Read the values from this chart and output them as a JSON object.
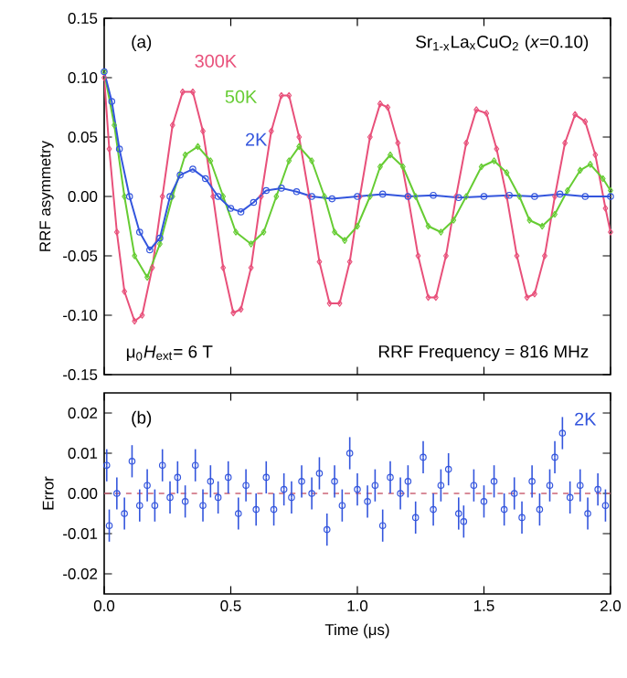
{
  "chart_data": [
    {
      "type": "line",
      "xlim": [
        0,
        2
      ],
      "ylim": [
        -0.15,
        0.15
      ],
      "xticks": [
        0,
        0.5,
        1,
        1.5,
        2
      ],
      "yticks": [
        {
          "value": -0.15,
          "label": "-0.15"
        },
        {
          "value": -0.1,
          "label": "-0.10"
        },
        {
          "value": -0.05,
          "label": "-0.05"
        },
        {
          "value": 0,
          "label": "0.00"
        },
        {
          "value": 0.05,
          "label": "0.05"
        },
        {
          "value": 0.1,
          "label": "0.10"
        },
        {
          "value": 0.15,
          "label": "0.15"
        }
      ],
      "tick_labels": "y",
      "ylabel": "RRF asymmetry",
      "annotations": [
        "(a)",
        "Sr$_{1-x}$La$_{x}$CuO$_{2}$ (*x*=0.10)",
        "μ$_{0}$*H*$_{ext}$= 6 T",
        "RRF Frequency = 816 MHz"
      ],
      "series": [
        {
          "name": "300K",
          "color": "#e8507a",
          "marker": "diamond",
          "x": [
            0.0,
            0.02,
            0.05,
            0.08,
            0.12,
            0.15,
            0.19,
            0.23,
            0.27,
            0.31,
            0.35,
            0.39,
            0.43,
            0.47,
            0.51,
            0.54,
            0.58,
            0.62,
            0.66,
            0.7,
            0.73,
            0.77,
            0.81,
            0.85,
            0.89,
            0.93,
            0.97,
            1.01,
            1.05,
            1.09,
            1.12,
            1.16,
            1.2,
            1.24,
            1.28,
            1.31,
            1.35,
            1.39,
            1.43,
            1.47,
            1.51,
            1.55,
            1.59,
            1.63,
            1.67,
            1.7,
            1.74,
            1.78,
            1.82,
            1.86,
            1.9,
            1.94,
            1.98,
            2.0
          ],
          "values": [
            0.1,
            0.04,
            -0.03,
            -0.08,
            -0.105,
            -0.1,
            -0.06,
            0.0,
            0.06,
            0.088,
            0.088,
            0.055,
            0.0,
            -0.06,
            -0.098,
            -0.095,
            -0.06,
            0.0,
            0.055,
            0.085,
            0.085,
            0.05,
            0.0,
            -0.055,
            -0.09,
            -0.09,
            -0.055,
            0.0,
            0.05,
            0.078,
            0.075,
            0.045,
            0.0,
            -0.05,
            -0.085,
            -0.085,
            -0.05,
            0.0,
            0.045,
            0.073,
            0.07,
            0.04,
            0.0,
            -0.05,
            -0.085,
            -0.082,
            -0.05,
            0.0,
            0.045,
            0.069,
            0.063,
            0.035,
            -0.01,
            -0.03
          ]
        },
        {
          "name": "50K",
          "color": "#66cc33",
          "marker": "diamond",
          "x": [
            0.0,
            0.04,
            0.08,
            0.12,
            0.17,
            0.22,
            0.27,
            0.32,
            0.37,
            0.42,
            0.47,
            0.52,
            0.58,
            0.63,
            0.68,
            0.73,
            0.77,
            0.82,
            0.87,
            0.91,
            0.95,
            1.0,
            1.05,
            1.09,
            1.13,
            1.18,
            1.23,
            1.28,
            1.33,
            1.38,
            1.43,
            1.49,
            1.54,
            1.59,
            1.64,
            1.68,
            1.73,
            1.78,
            1.83,
            1.88,
            1.92,
            1.97,
            2.0
          ],
          "values": [
            0.105,
            0.06,
            0.0,
            -0.05,
            -0.068,
            -0.04,
            0.0,
            0.035,
            0.042,
            0.03,
            0.0,
            -0.03,
            -0.04,
            -0.03,
            0.0,
            0.03,
            0.042,
            0.03,
            0.0,
            -0.03,
            -0.037,
            -0.025,
            0.0,
            0.025,
            0.035,
            0.025,
            0.0,
            -0.025,
            -0.03,
            -0.02,
            0.0,
            0.025,
            0.03,
            0.02,
            0.0,
            -0.02,
            -0.025,
            -0.015,
            0.005,
            0.022,
            0.027,
            0.015,
            0.005
          ]
        },
        {
          "name": "2K",
          "color": "#3355dd",
          "marker": "circle",
          "x": [
            0.0,
            0.03,
            0.06,
            0.1,
            0.14,
            0.18,
            0.22,
            0.26,
            0.3,
            0.35,
            0.4,
            0.45,
            0.5,
            0.54,
            0.59,
            0.64,
            0.7,
            0.76,
            0.82,
            0.9,
            1.0,
            1.1,
            1.2,
            1.3,
            1.4,
            1.5,
            1.6,
            1.7,
            1.8,
            1.9,
            2.0
          ],
          "values": [
            0.105,
            0.08,
            0.04,
            0.0,
            -0.03,
            -0.045,
            -0.035,
            0.0,
            0.018,
            0.023,
            0.015,
            0.0,
            -0.01,
            -0.013,
            -0.005,
            0.005,
            0.007,
            0.004,
            0.0,
            -0.002,
            0.0,
            0.002,
            0.0,
            0.001,
            -0.001,
            0.0,
            0.001,
            0.0,
            0.002,
            0.0,
            0.0
          ]
        }
      ]
    },
    {
      "type": "scatter",
      "xlim": [
        0,
        2
      ],
      "ylim": [
        -0.025,
        0.025
      ],
      "xticks": [
        {
          "value": 0,
          "label": "0.0"
        },
        {
          "value": 0.5,
          "label": "0.5"
        },
        {
          "value": 1,
          "label": "1.0"
        },
        {
          "value": 1.5,
          "label": "1.5"
        },
        {
          "value": 2,
          "label": "2.0"
        }
      ],
      "yticks": [
        {
          "value": -0.02,
          "label": "-0.02"
        },
        {
          "value": -0.01,
          "label": "-0.01"
        },
        {
          "value": 0,
          "label": "0.00"
        },
        {
          "value": 0.01,
          "label": "0.01"
        },
        {
          "value": 0.02,
          "label": "0.02"
        }
      ],
      "xlabel": "Time (μs)",
      "ylabel": "Error",
      "marker": "circle",
      "annotations": [
        "(b)"
      ],
      "ref_lines": [
        {
          "axis": "y",
          "value": 0,
          "color": "#cc6677",
          "line_style": "dashed"
        }
      ],
      "series": [
        {
          "name": "2K",
          "color": "#3355dd",
          "x": [
            0.01,
            0.02,
            0.05,
            0.08,
            0.11,
            0.14,
            0.17,
            0.2,
            0.23,
            0.26,
            0.29,
            0.32,
            0.36,
            0.39,
            0.42,
            0.45,
            0.49,
            0.53,
            0.56,
            0.6,
            0.64,
            0.67,
            0.71,
            0.74,
            0.78,
            0.82,
            0.85,
            0.88,
            0.91,
            0.94,
            0.97,
            1.0,
            1.04,
            1.07,
            1.1,
            1.13,
            1.17,
            1.2,
            1.23,
            1.26,
            1.3,
            1.33,
            1.36,
            1.4,
            1.42,
            1.46,
            1.5,
            1.54,
            1.58,
            1.62,
            1.65,
            1.69,
            1.72,
            1.76,
            1.78,
            1.81,
            1.84,
            1.88,
            1.91,
            1.95,
            1.98
          ],
          "values": [
            0.007,
            -0.008,
            0.0,
            -0.005,
            0.008,
            -0.003,
            0.002,
            -0.003,
            0.007,
            -0.001,
            0.004,
            -0.002,
            0.007,
            -0.003,
            0.003,
            -0.001,
            0.004,
            -0.005,
            0.002,
            -0.004,
            0.004,
            -0.004,
            0.001,
            -0.001,
            0.003,
            0.0,
            0.005,
            -0.009,
            0.003,
            -0.003,
            0.01,
            0.001,
            -0.002,
            0.002,
            -0.008,
            0.004,
            0.0,
            0.003,
            -0.006,
            0.009,
            -0.004,
            0.002,
            0.006,
            -0.005,
            -0.007,
            0.002,
            -0.002,
            0.003,
            -0.004,
            0.0,
            -0.006,
            0.003,
            -0.004,
            0.002,
            0.009,
            0.015,
            -0.001,
            0.002,
            -0.005,
            0.001,
            -0.003
          ],
          "errors": [
            0.004,
            0.004,
            0.004,
            0.004,
            0.004,
            0.004,
            0.004,
            0.004,
            0.004,
            0.004,
            0.004,
            0.004,
            0.004,
            0.004,
            0.004,
            0.004,
            0.004,
            0.004,
            0.004,
            0.004,
            0.004,
            0.004,
            0.004,
            0.004,
            0.004,
            0.004,
            0.004,
            0.004,
            0.004,
            0.004,
            0.004,
            0.004,
            0.004,
            0.004,
            0.004,
            0.004,
            0.004,
            0.004,
            0.004,
            0.004,
            0.004,
            0.004,
            0.004,
            0.004,
            0.004,
            0.004,
            0.004,
            0.004,
            0.004,
            0.004,
            0.004,
            0.004,
            0.004,
            0.004,
            0.004,
            0.004,
            0.004,
            0.004,
            0.004,
            0.004,
            0.004
          ]
        }
      ]
    }
  ]
}
